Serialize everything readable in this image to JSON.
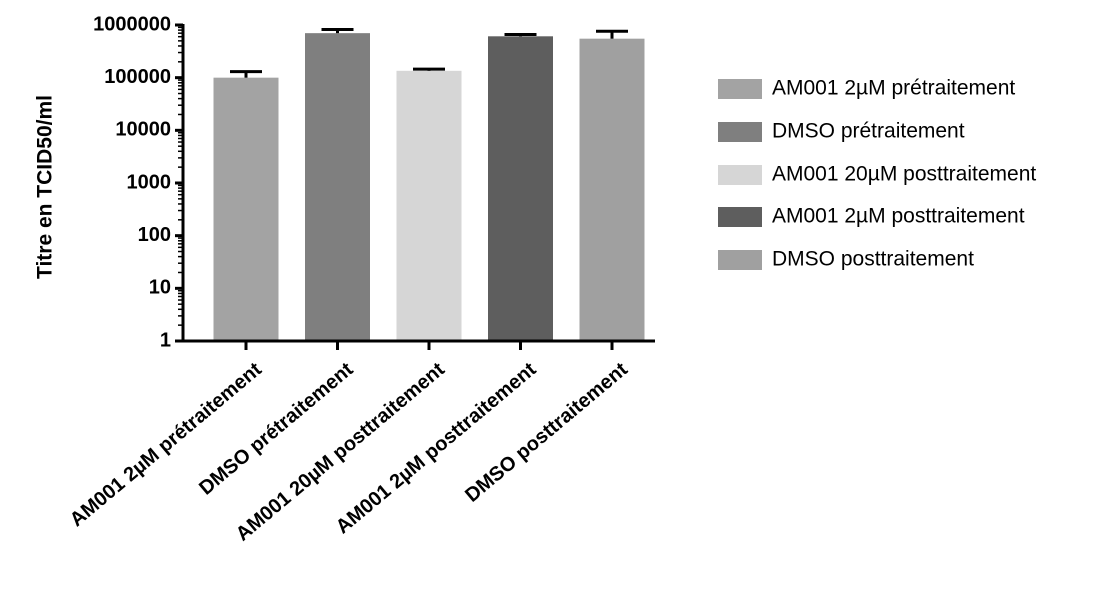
{
  "chart_data": {
    "type": "bar",
    "ylabel": "Titre en TCID50/ml",
    "xlabel": "",
    "yscale": "log",
    "ylim": [
      1,
      1000000
    ],
    "yticks": [
      1,
      10,
      100,
      1000,
      10000,
      100000,
      1000000
    ],
    "ytick_labels": [
      "1",
      "10",
      "100",
      "1000",
      "10000",
      "100000",
      "1000000"
    ],
    "categories": [
      "AM001 2µM prétraitement",
      "DMSO prétraitement",
      "AM001 20µM posttraitement",
      "AM001 2µM posttraitement",
      "DMSO posttraitement"
    ],
    "values": [
      100000,
      700000,
      135000,
      610000,
      550000
    ],
    "error_upper": [
      130000,
      820000,
      145000,
      660000,
      760000
    ],
    "colors": [
      "#a3a3a3",
      "#7f7f7f",
      "#d6d6d6",
      "#5e5e5e",
      "#a0a0a0"
    ],
    "legend": {
      "position": "right",
      "entries": [
        "AM001 2µM prétraitement",
        "DMSO prétraitement",
        "AM001 20µM posttraitement",
        "AM001 2µM posttraitement",
        "DMSO posttraitement"
      ]
    },
    "grid": false
  }
}
